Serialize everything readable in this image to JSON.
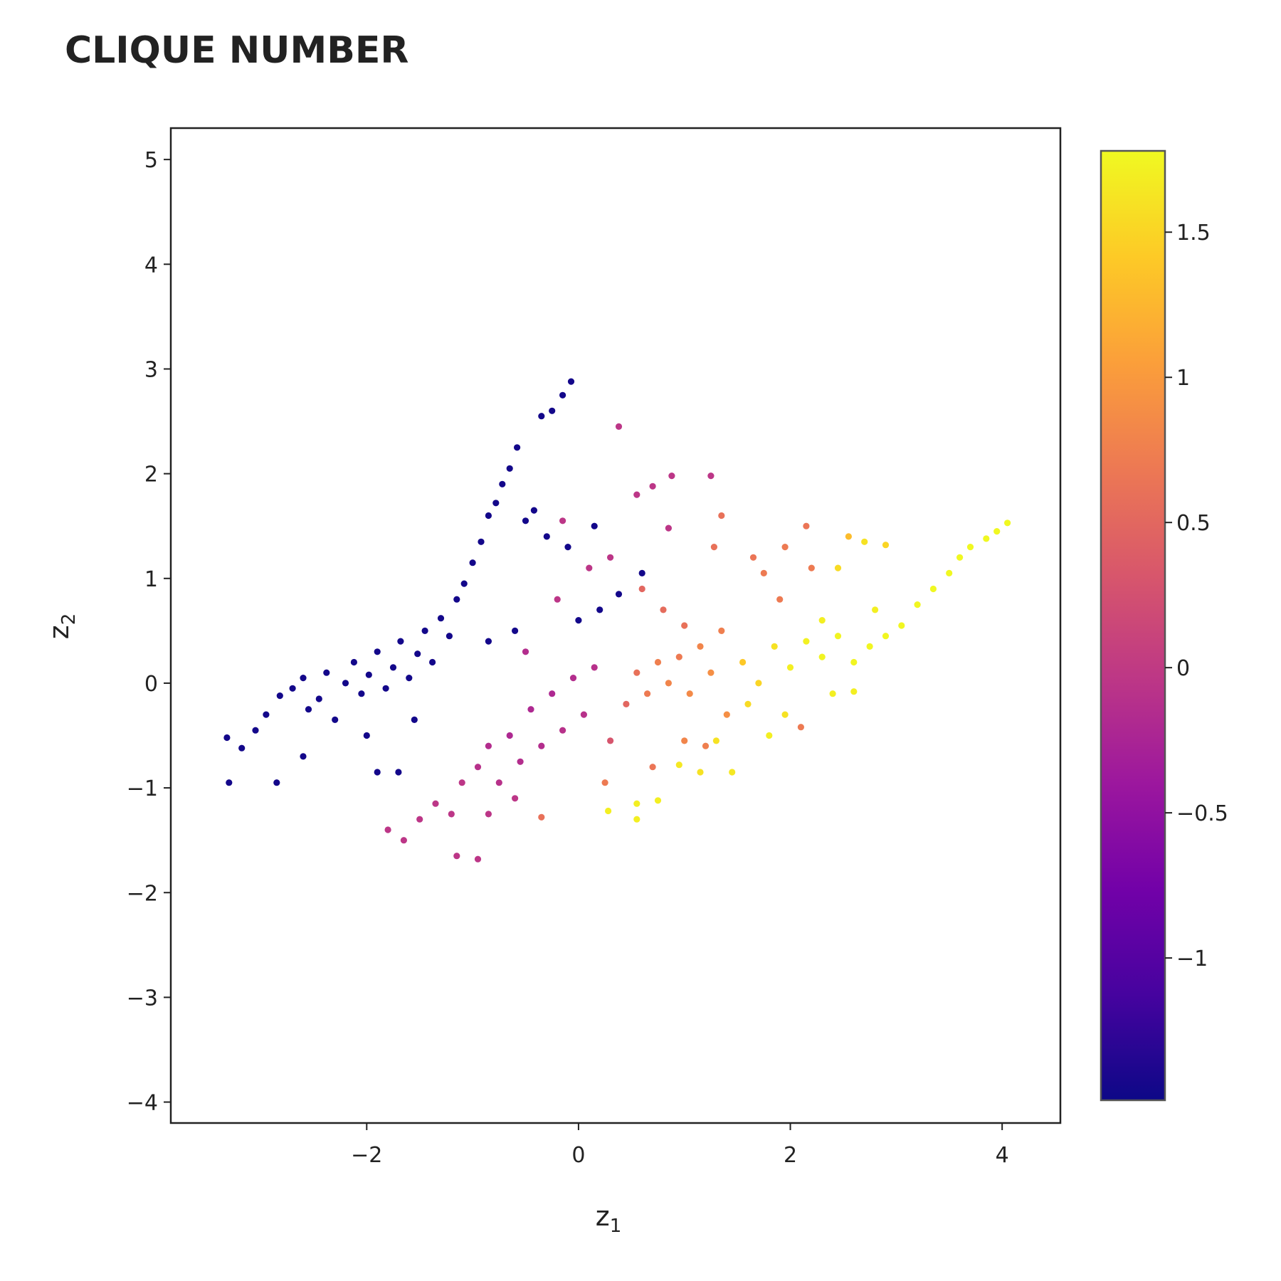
{
  "chart_data": {
    "type": "scatter",
    "title": "CLIQUE NUMBER",
    "xlabel": "z",
    "xlabel_sub": "1",
    "ylabel": "z",
    "ylabel_sub": "2",
    "xlim": [
      -3.85,
      4.55
    ],
    "ylim": [
      -4.2,
      5.3
    ],
    "x_ticks": [
      -2,
      0,
      2,
      4
    ],
    "x_tick_labels": [
      "−2",
      "0",
      "2",
      "4"
    ],
    "y_ticks": [
      -4,
      -3,
      -2,
      -1,
      0,
      1,
      2,
      3,
      4,
      5
    ],
    "y_tick_labels": [
      "−4",
      "−3",
      "−2",
      "−1",
      "0",
      "1",
      "2",
      "3",
      "4",
      "5"
    ],
    "grid": false,
    "colorbar": {
      "colorscale": "plasma",
      "range": [
        -1.49,
        1.78
      ],
      "ticks": [
        -1,
        -0.5,
        0,
        0.5,
        1,
        1.5
      ],
      "tick_labels": [
        "−1",
        "−0.5",
        "0",
        "0.5",
        "1",
        "1.5"
      ],
      "colors": [
        "#0d0887",
        "#46039f",
        "#7201a8",
        "#9c179e",
        "#bd3786",
        "#d8576b",
        "#ed7953",
        "#fb9f3a",
        "#fdca26",
        "#f0f921"
      ]
    },
    "points": [
      {
        "x": -3.32,
        "y": -0.52,
        "c": -1.45
      },
      {
        "x": -3.18,
        "y": -0.62,
        "c": -1.45
      },
      {
        "x": -3.05,
        "y": -0.45,
        "c": -1.45
      },
      {
        "x": -2.95,
        "y": -0.3,
        "c": -1.45
      },
      {
        "x": -2.82,
        "y": -0.12,
        "c": -1.45
      },
      {
        "x": -2.7,
        "y": -0.05,
        "c": -1.45
      },
      {
        "x": -2.6,
        "y": 0.05,
        "c": -1.45
      },
      {
        "x": -2.55,
        "y": -0.25,
        "c": -1.45
      },
      {
        "x": -2.45,
        "y": -0.15,
        "c": -1.45
      },
      {
        "x": -2.38,
        "y": 0.1,
        "c": -1.45
      },
      {
        "x": -2.3,
        "y": -0.35,
        "c": -1.45
      },
      {
        "x": -2.2,
        "y": 0.0,
        "c": -1.45
      },
      {
        "x": -2.12,
        "y": 0.2,
        "c": -1.45
      },
      {
        "x": -2.05,
        "y": -0.1,
        "c": -1.45
      },
      {
        "x": -1.98,
        "y": 0.08,
        "c": -1.45
      },
      {
        "x": -1.9,
        "y": 0.3,
        "c": -1.45
      },
      {
        "x": -1.82,
        "y": -0.05,
        "c": -1.45
      },
      {
        "x": -1.75,
        "y": 0.15,
        "c": -1.45
      },
      {
        "x": -1.68,
        "y": 0.4,
        "c": -1.45
      },
      {
        "x": -1.6,
        "y": 0.05,
        "c": -1.45
      },
      {
        "x": -1.52,
        "y": 0.28,
        "c": -1.45
      },
      {
        "x": -1.45,
        "y": 0.5,
        "c": -1.45
      },
      {
        "x": -1.38,
        "y": 0.2,
        "c": -1.45
      },
      {
        "x": -1.3,
        "y": 0.62,
        "c": -1.45
      },
      {
        "x": -1.22,
        "y": 0.45,
        "c": -1.45
      },
      {
        "x": -1.15,
        "y": 0.8,
        "c": -1.45
      },
      {
        "x": -1.08,
        "y": 0.95,
        "c": -1.45
      },
      {
        "x": -1.0,
        "y": 1.15,
        "c": -1.45
      },
      {
        "x": -0.92,
        "y": 1.35,
        "c": -1.45
      },
      {
        "x": -0.85,
        "y": 1.6,
        "c": -1.45
      },
      {
        "x": -0.78,
        "y": 1.72,
        "c": -1.45
      },
      {
        "x": -0.72,
        "y": 1.9,
        "c": -1.45
      },
      {
        "x": -0.65,
        "y": 2.05,
        "c": -1.45
      },
      {
        "x": -0.58,
        "y": 2.25,
        "c": -1.45
      },
      {
        "x": -0.5,
        "y": 1.55,
        "c": -1.45
      },
      {
        "x": -0.42,
        "y": 1.65,
        "c": -1.45
      },
      {
        "x": -0.35,
        "y": 2.55,
        "c": -1.45
      },
      {
        "x": -0.25,
        "y": 2.6,
        "c": -1.45
      },
      {
        "x": -0.15,
        "y": 2.75,
        "c": -1.45
      },
      {
        "x": -0.07,
        "y": 2.88,
        "c": -1.45
      },
      {
        "x": -0.3,
        "y": 1.4,
        "c": -1.45
      },
      {
        "x": -0.1,
        "y": 1.3,
        "c": -1.45
      },
      {
        "x": 0.15,
        "y": 1.5,
        "c": -1.45
      },
      {
        "x": 0.0,
        "y": 0.6,
        "c": -1.45
      },
      {
        "x": 0.2,
        "y": 0.7,
        "c": -1.45
      },
      {
        "x": 0.38,
        "y": 0.85,
        "c": -1.45
      },
      {
        "x": 0.6,
        "y": 1.05,
        "c": -1.45
      },
      {
        "x": -0.6,
        "y": 0.5,
        "c": -1.45
      },
      {
        "x": -0.85,
        "y": 0.4,
        "c": -1.45
      },
      {
        "x": -1.9,
        "y": -0.85,
        "c": -1.45
      },
      {
        "x": -2.6,
        "y": -0.7,
        "c": -1.45
      },
      {
        "x": -3.3,
        "y": -0.95,
        "c": -1.45
      },
      {
        "x": -2.85,
        "y": -0.95,
        "c": -1.45
      },
      {
        "x": -1.7,
        "y": -0.85,
        "c": -1.45
      },
      {
        "x": -1.55,
        "y": -0.35,
        "c": -1.45
      },
      {
        "x": -2.0,
        "y": -0.5,
        "c": -1.45
      },
      {
        "x": -1.8,
        "y": -1.4,
        "c": -0.05
      },
      {
        "x": -1.65,
        "y": -1.5,
        "c": -0.05
      },
      {
        "x": -1.5,
        "y": -1.3,
        "c": -0.05
      },
      {
        "x": -1.35,
        "y": -1.15,
        "c": -0.05
      },
      {
        "x": -1.2,
        "y": -1.25,
        "c": -0.05
      },
      {
        "x": -1.1,
        "y": -0.95,
        "c": -0.05
      },
      {
        "x": -0.95,
        "y": -1.68,
        "c": -0.05
      },
      {
        "x": -1.15,
        "y": -1.65,
        "c": -0.05
      },
      {
        "x": -0.95,
        "y": -0.8,
        "c": -0.1
      },
      {
        "x": -0.85,
        "y": -0.6,
        "c": -0.15
      },
      {
        "x": -0.75,
        "y": -0.95,
        "c": -0.1
      },
      {
        "x": -0.65,
        "y": -0.5,
        "c": -0.2
      },
      {
        "x": -0.55,
        "y": -0.75,
        "c": -0.15
      },
      {
        "x": -0.45,
        "y": -0.25,
        "c": -0.2
      },
      {
        "x": -0.35,
        "y": -0.6,
        "c": -0.15
      },
      {
        "x": -0.25,
        "y": -0.1,
        "c": -0.2
      },
      {
        "x": -0.15,
        "y": -0.45,
        "c": -0.1
      },
      {
        "x": -0.05,
        "y": 0.05,
        "c": -0.15
      },
      {
        "x": 0.05,
        "y": -0.3,
        "c": -0.1
      },
      {
        "x": 0.15,
        "y": 0.15,
        "c": -0.1
      },
      {
        "x": -0.5,
        "y": 0.3,
        "c": -0.15
      },
      {
        "x": -0.2,
        "y": 0.8,
        "c": -0.05
      },
      {
        "x": 0.1,
        "y": 1.1,
        "c": -0.05
      },
      {
        "x": 0.3,
        "y": 1.2,
        "c": -0.05
      },
      {
        "x": 0.38,
        "y": 2.45,
        "c": -0.05
      },
      {
        "x": 0.55,
        "y": 1.8,
        "c": -0.05
      },
      {
        "x": 0.7,
        "y": 1.88,
        "c": -0.05
      },
      {
        "x": 0.88,
        "y": 1.98,
        "c": -0.05
      },
      {
        "x": 1.25,
        "y": 1.98,
        "c": -0.05
      },
      {
        "x": 0.85,
        "y": 1.48,
        "c": -0.05
      },
      {
        "x": -0.15,
        "y": 1.55,
        "c": -0.05
      },
      {
        "x": -0.35,
        "y": -1.28,
        "c": 0.6
      },
      {
        "x": -0.6,
        "y": -1.1,
        "c": -0.05
      },
      {
        "x": -0.85,
        "y": -1.25,
        "c": -0.05
      },
      {
        "x": 0.3,
        "y": -0.55,
        "c": 0.3
      },
      {
        "x": 0.45,
        "y": -0.2,
        "c": 0.5
      },
      {
        "x": 0.55,
        "y": 0.1,
        "c": 0.6
      },
      {
        "x": 0.65,
        "y": -0.1,
        "c": 0.7
      },
      {
        "x": 0.75,
        "y": 0.2,
        "c": 0.75
      },
      {
        "x": 0.85,
        "y": 0.0,
        "c": 0.8
      },
      {
        "x": 0.95,
        "y": 0.25,
        "c": 0.7
      },
      {
        "x": 1.05,
        "y": -0.1,
        "c": 0.85
      },
      {
        "x": 1.15,
        "y": 0.35,
        "c": 0.8
      },
      {
        "x": 1.25,
        "y": 0.1,
        "c": 0.9
      },
      {
        "x": 1.35,
        "y": 0.5,
        "c": 0.75
      },
      {
        "x": 1.0,
        "y": 0.55,
        "c": 0.6
      },
      {
        "x": 0.8,
        "y": 0.7,
        "c": 0.55
      },
      {
        "x": 0.6,
        "y": 0.9,
        "c": 0.5
      },
      {
        "x": 1.35,
        "y": 1.6,
        "c": 0.6
      },
      {
        "x": 1.28,
        "y": 1.3,
        "c": 0.6
      },
      {
        "x": 2.15,
        "y": 1.5,
        "c": 0.65
      },
      {
        "x": 1.95,
        "y": 1.3,
        "c": 0.7
      },
      {
        "x": 2.2,
        "y": 1.1,
        "c": 0.7
      },
      {
        "x": 2.55,
        "y": 1.4,
        "c": 1.3
      },
      {
        "x": 1.65,
        "y": 1.2,
        "c": 0.65
      },
      {
        "x": 1.75,
        "y": 1.05,
        "c": 0.7
      },
      {
        "x": 0.7,
        "y": -0.8,
        "c": 0.65
      },
      {
        "x": 0.25,
        "y": -0.95,
        "c": 0.7
      },
      {
        "x": 1.0,
        "y": -0.55,
        "c": 0.8
      },
      {
        "x": 1.2,
        "y": -0.6,
        "c": 0.75
      },
      {
        "x": 1.4,
        "y": -0.3,
        "c": 0.9
      },
      {
        "x": 2.1,
        "y": -0.42,
        "c": 0.7
      },
      {
        "x": 1.9,
        "y": 0.8,
        "c": 0.7
      },
      {
        "x": 1.55,
        "y": 0.2,
        "c": 1.4
      },
      {
        "x": 1.7,
        "y": 0.0,
        "c": 1.5
      },
      {
        "x": 1.85,
        "y": 0.35,
        "c": 1.6
      },
      {
        "x": 2.0,
        "y": 0.15,
        "c": 1.7
      },
      {
        "x": 2.15,
        "y": 0.4,
        "c": 1.72
      },
      {
        "x": 2.3,
        "y": 0.25,
        "c": 1.74
      },
      {
        "x": 2.45,
        "y": 0.45,
        "c": 1.74
      },
      {
        "x": 2.6,
        "y": 0.2,
        "c": 1.75
      },
      {
        "x": 2.75,
        "y": 0.35,
        "c": 1.76
      },
      {
        "x": 2.9,
        "y": 0.45,
        "c": 1.76
      },
      {
        "x": 3.05,
        "y": 0.55,
        "c": 1.76
      },
      {
        "x": 3.2,
        "y": 0.75,
        "c": 1.76
      },
      {
        "x": 3.35,
        "y": 0.9,
        "c": 1.77
      },
      {
        "x": 3.5,
        "y": 1.05,
        "c": 1.77
      },
      {
        "x": 3.6,
        "y": 1.2,
        "c": 1.77
      },
      {
        "x": 3.7,
        "y": 1.3,
        "c": 1.77
      },
      {
        "x": 3.85,
        "y": 1.38,
        "c": 1.77
      },
      {
        "x": 3.95,
        "y": 1.45,
        "c": 1.77
      },
      {
        "x": 4.05,
        "y": 1.53,
        "c": 1.78
      },
      {
        "x": 2.9,
        "y": 1.32,
        "c": 1.5
      },
      {
        "x": 2.7,
        "y": 1.35,
        "c": 1.6
      },
      {
        "x": 2.45,
        "y": 1.1,
        "c": 1.55
      },
      {
        "x": 2.8,
        "y": 0.7,
        "c": 1.7
      },
      {
        "x": 2.3,
        "y": 0.6,
        "c": 1.7
      },
      {
        "x": 2.4,
        "y": -0.1,
        "c": 1.7
      },
      {
        "x": 2.6,
        "y": -0.08,
        "c": 1.7
      },
      {
        "x": 1.8,
        "y": -0.5,
        "c": 1.7
      },
      {
        "x": 1.3,
        "y": -0.55,
        "c": 1.6
      },
      {
        "x": 1.45,
        "y": -0.85,
        "c": 1.65
      },
      {
        "x": 1.15,
        "y": -0.85,
        "c": 1.6
      },
      {
        "x": 0.95,
        "y": -0.78,
        "c": 1.65
      },
      {
        "x": 0.55,
        "y": -1.15,
        "c": 1.7
      },
      {
        "x": 0.55,
        "y": -1.3,
        "c": 1.7
      },
      {
        "x": 0.28,
        "y": -1.22,
        "c": 1.7
      },
      {
        "x": 0.75,
        "y": -1.12,
        "c": 1.7
      },
      {
        "x": 1.6,
        "y": -0.2,
        "c": 1.55
      },
      {
        "x": 1.95,
        "y": -0.3,
        "c": 1.6
      }
    ]
  }
}
